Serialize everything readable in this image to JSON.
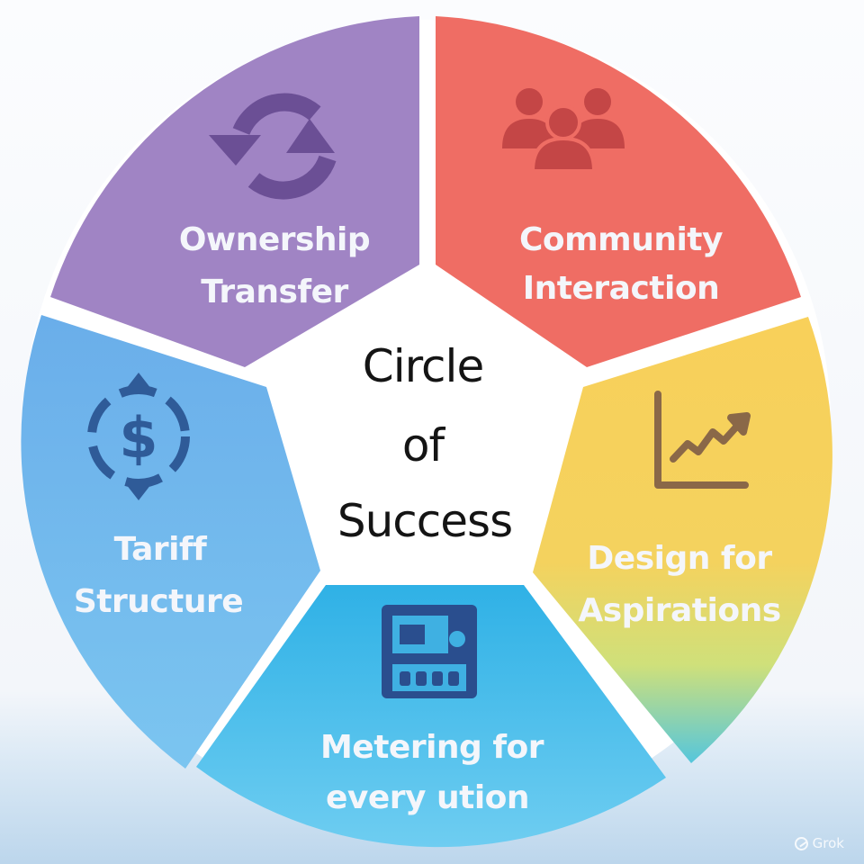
{
  "center": {
    "line1": "Circle",
    "line2": "of",
    "line3": "Success"
  },
  "segments": {
    "ownership": {
      "line1": "Ownership",
      "line2": "Transfer",
      "icon": "refresh-arrows-icon",
      "color": "#9f84c4"
    },
    "community": {
      "line1": "Community",
      "line2": "Interaction",
      "icon": "people-group-icon",
      "color": "#ef6e66"
    },
    "design": {
      "line1": "Design for",
      "line2": "Aspirations",
      "icon": "rising-chart-icon",
      "color": "#f7cf58"
    },
    "metering": {
      "line1": "Metering for",
      "line2": "every ution",
      "icon": "electric-meter-icon",
      "color": "#41b8e6"
    },
    "tariff": {
      "line1": "Tariff",
      "line2": "Structure",
      "icon": "dollar-cycle-icon",
      "color": "#6ab3ec"
    }
  },
  "watermark": {
    "text": "Grok"
  },
  "colors": {
    "icon_purple": "#6a4e94",
    "icon_red": "#c64848",
    "icon_yellow": "#8a6a4a",
    "icon_blue": "#2f5a96"
  }
}
